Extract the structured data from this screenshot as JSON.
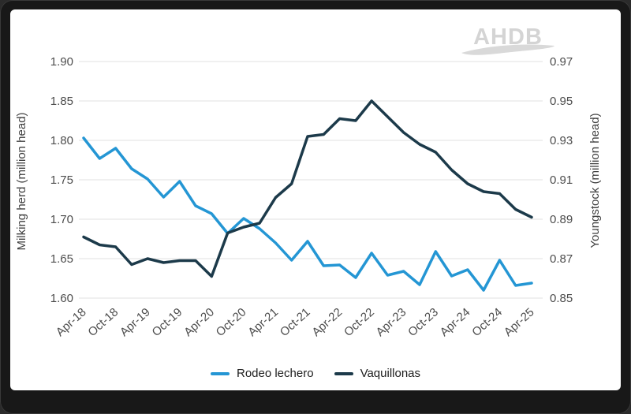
{
  "logo": {
    "text": "AHDB"
  },
  "colors": {
    "frame": "#181818",
    "card": "#ffffff",
    "grid": "#e8e8e8",
    "tick_text": "#4d4d4d",
    "axis_title_text": "#3f3f3f",
    "legend_text": "#1d1d1d",
    "logo_gray": "#d4d4d4",
    "rodeo_lechero_blue": "#2496d4",
    "vaquillonas_navy": "#1c3a4a"
  },
  "chart_data": {
    "type": "line",
    "x": [
      "Apr-18",
      "Jul-18",
      "Oct-18",
      "Jan-19",
      "Apr-19",
      "Jul-19",
      "Oct-19",
      "Jan-20",
      "Apr-20",
      "Jul-20",
      "Oct-20",
      "Jan-21",
      "Apr-21",
      "Jul-21",
      "Oct-21",
      "Jan-22",
      "Apr-22",
      "Jul-22",
      "Oct-22",
      "Jan-23",
      "Apr-23",
      "Jul-23",
      "Oct-23",
      "Jan-24",
      "Apr-24",
      "Jul-24",
      "Oct-24",
      "Jan-25",
      "Apr-25"
    ],
    "x_tick_step": 2,
    "series": [
      {
        "name": "Rodeo lechero",
        "axis": "left",
        "color": "#2496d4",
        "values": [
          1.803,
          1.777,
          1.79,
          1.764,
          1.751,
          1.728,
          1.748,
          1.717,
          1.707,
          1.682,
          1.701,
          1.688,
          1.67,
          1.648,
          1.672,
          1.641,
          1.642,
          1.626,
          1.657,
          1.629,
          1.634,
          1.617,
          1.659,
          1.628,
          1.636,
          1.61,
          1.648,
          1.616,
          1.619
        ]
      },
      {
        "name": "Vaquillonas",
        "axis": "right",
        "color": "#1c3a4a",
        "values": [
          0.881,
          0.877,
          0.876,
          0.867,
          0.87,
          0.868,
          0.869,
          0.869,
          0.861,
          0.883,
          0.886,
          0.888,
          0.901,
          0.908,
          0.932,
          0.933,
          0.941,
          0.94,
          0.95,
          0.942,
          0.934,
          0.928,
          0.924,
          0.915,
          0.908,
          0.904,
          0.903,
          0.895,
          0.891
        ]
      }
    ],
    "left_axis": {
      "title": "Milking herd (million head)",
      "ticks": [
        "1.90",
        "1.85",
        "1.80",
        "1.75",
        "1.70",
        "1.65",
        "1.60"
      ],
      "range": [
        1.6,
        1.9
      ]
    },
    "right_axis": {
      "title": "Youngstock (million head)",
      "ticks": [
        "0.97",
        "0.95",
        "0.93",
        "0.91",
        "0.89",
        "0.87",
        "0.85"
      ],
      "range": [
        0.85,
        0.97
      ]
    },
    "grid": true,
    "legend_position": "bottom"
  }
}
